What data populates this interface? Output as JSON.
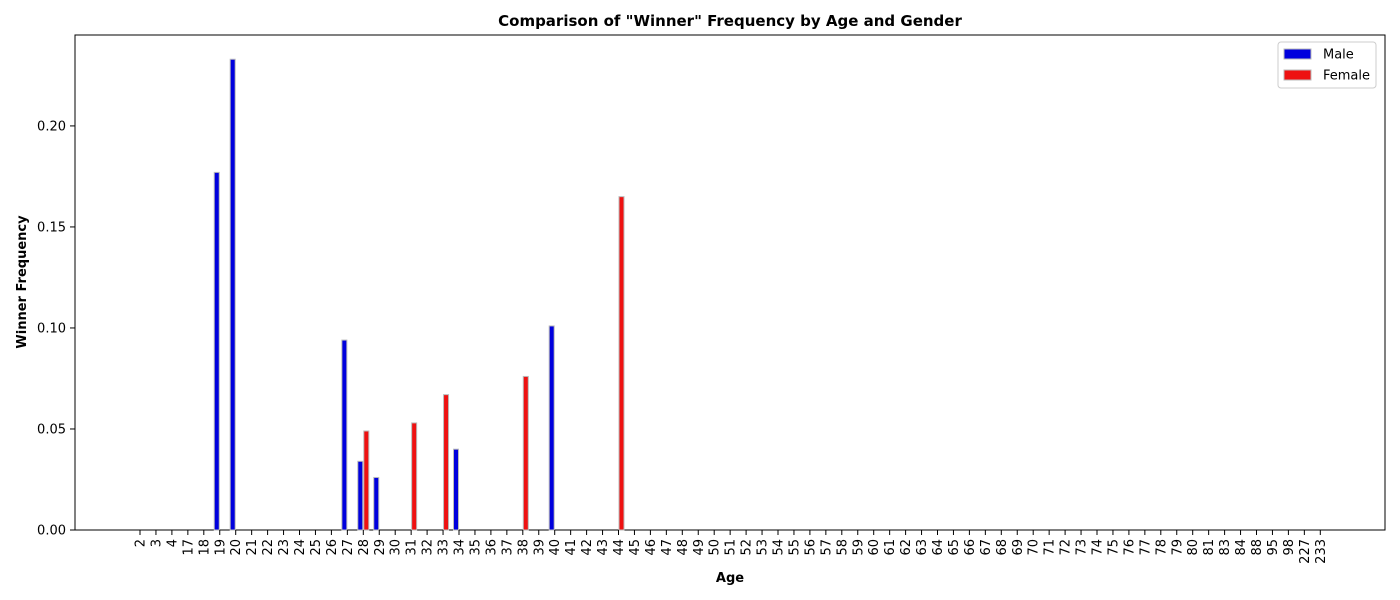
{
  "chart_data": {
    "type": "bar",
    "title": "Comparison of \"Winner\" Frequency by Age and Gender",
    "xlabel": "Age",
    "ylabel": "Winner Frequency",
    "ylim": [
      0,
      0.245
    ],
    "yticks": [
      "0.00",
      "0.05",
      "0.10",
      "0.15",
      "0.20"
    ],
    "categories": [
      "2",
      "3",
      "4",
      "17",
      "18",
      "19",
      "20",
      "21",
      "22",
      "23",
      "24",
      "25",
      "26",
      "27",
      "28",
      "29",
      "30",
      "31",
      "32",
      "33",
      "34",
      "35",
      "36",
      "37",
      "38",
      "39",
      "40",
      "41",
      "42",
      "43",
      "44",
      "45",
      "46",
      "47",
      "48",
      "49",
      "50",
      "51",
      "52",
      "53",
      "54",
      "55",
      "56",
      "57",
      "58",
      "59",
      "60",
      "61",
      "62",
      "63",
      "64",
      "65",
      "66",
      "67",
      "68",
      "69",
      "70",
      "71",
      "72",
      "73",
      "74",
      "75",
      "76",
      "77",
      "78",
      "79",
      "80",
      "81",
      "83",
      "84",
      "88",
      "95",
      "98",
      "227",
      "233"
    ],
    "series": [
      {
        "name": "Male",
        "color": "#0000dd",
        "values": [
          0,
          0,
          0,
          0,
          0,
          0.177,
          0.233,
          0,
          0,
          0,
          0,
          0,
          0,
          0.094,
          0.034,
          0.026,
          0,
          0,
          0,
          0,
          0.04,
          0,
          0,
          0,
          0,
          0,
          0.101,
          0,
          0,
          0,
          0,
          0,
          0,
          0,
          0,
          0,
          0,
          0,
          0,
          0,
          0,
          0,
          0,
          0,
          0,
          0,
          0,
          0,
          0,
          0,
          0,
          0,
          0,
          0,
          0,
          0,
          0,
          0,
          0,
          0,
          0,
          0,
          0,
          0,
          0,
          0,
          0,
          0,
          0,
          0,
          0,
          0,
          0,
          0,
          0
        ]
      },
      {
        "name": "Female",
        "color": "#ee1111",
        "values": [
          0,
          0,
          0,
          0,
          0,
          0,
          0,
          0,
          0,
          0,
          0,
          0,
          0,
          0,
          0.049,
          0,
          0,
          0.053,
          0,
          0.067,
          0,
          0,
          0,
          0,
          0.076,
          0,
          0,
          0,
          0,
          0,
          0.165,
          0,
          0,
          0,
          0,
          0,
          0,
          0,
          0,
          0,
          0,
          0,
          0,
          0,
          0,
          0,
          0,
          0,
          0,
          0,
          0,
          0,
          0,
          0,
          0,
          0,
          0,
          0,
          0,
          0,
          0,
          0,
          0,
          0,
          0,
          0,
          0,
          0,
          0,
          0,
          0,
          0,
          0,
          0,
          0
        ]
      }
    ],
    "legend_position": "top-right",
    "grid": false
  }
}
